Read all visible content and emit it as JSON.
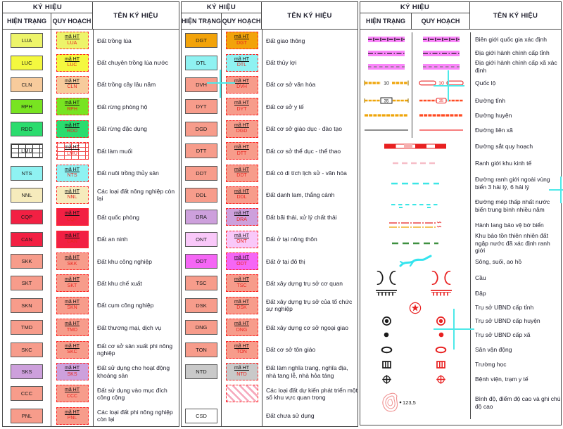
{
  "header": {
    "ky_hieu": "KÝ HIỆU",
    "hien_trang": "HIỆN TRẠNG",
    "quy_hoach": "QUY HOẠCH",
    "ten_ky_hieu": "TÊN KÝ HIỆU"
  },
  "ma_ht": "mã HT",
  "colors": {
    "band_pink": "#FA86FA",
    "border_line_black": "#1A1A1A",
    "border_line_gray": "#7A7A7A",
    "road_orange": "#EFA50A",
    "road_red_orange": "#FF4A22",
    "red": "#E82020",
    "orange_line": "#EFA000",
    "cyan_line": "#3CE6E6",
    "econ_pink": "#F6BEC8",
    "reserve_green": "#3E9040",
    "river_cyan": "#35E4EE",
    "black": "#1A1A1A",
    "contour_red": "#F09090",
    "cross_cyan": "#4DE9E9",
    "code_red": "#E8251F"
  },
  "group1": {
    "rows": [
      {
        "code": "LUA",
        "color": "#EDF46A",
        "ht": true,
        "qh": true,
        "name": "Đất trồng lúa"
      },
      {
        "code": "LUC",
        "color": "#F4F83F",
        "ht": true,
        "qh": true,
        "name": "Đất chuyên trồng lúa nước"
      },
      {
        "code": "CLN",
        "color": "#F7CB9C",
        "ht": true,
        "qh": true,
        "name": "Đất trồng cây lâu năm"
      },
      {
        "code": "RPH",
        "color": "#78E421",
        "ht": true,
        "qh": true,
        "name": "Đất rừng phòng hộ"
      },
      {
        "code": "RDD",
        "color": "#2BDC6E",
        "ht": true,
        "qh": true,
        "name": "Đất rừng đặc dụng"
      },
      {
        "code": "LMU",
        "color": "#FFFFFF",
        "pattern": "grid",
        "ht": true,
        "qh": true,
        "name": "Đất làm muối"
      },
      {
        "code": "NTS",
        "color": "#8FF2F2",
        "ht": true,
        "qh": true,
        "name": "Đất nuôi trồng thủy sản"
      },
      {
        "code": "NNL",
        "color": "#F6EBBC",
        "ht": true,
        "qh": true,
        "name": "Các loại đất nông nghiệp còn lại"
      },
      {
        "code": "CQP",
        "color": "#F22043",
        "ht": true,
        "qh": true,
        "name": "Đất quốc phòng"
      },
      {
        "code": "CAN",
        "color": "#F22043",
        "ht": true,
        "qh": true,
        "name": "Đất an ninh"
      },
      {
        "code": "SKK",
        "color": "#F79C8B",
        "ht": true,
        "qh": true,
        "name": "Đất khu công nghiệp"
      },
      {
        "code": "SKT",
        "color": "#F79C8B",
        "ht": true,
        "qh": true,
        "name": "Đất khu chế xuất"
      },
      {
        "code": "SKN",
        "color": "#F79C8B",
        "ht": true,
        "qh": true,
        "name": "Đất cụm công nghiệp"
      },
      {
        "code": "TMD",
        "color": "#F79C8B",
        "ht": true,
        "qh": true,
        "name": "Đất thương mại, dịch vụ"
      },
      {
        "code": "SKC",
        "color": "#F79C8B",
        "ht": true,
        "qh": true,
        "name": "Đất cơ sở sản xuất phi nông nghiệp"
      },
      {
        "code": "SKS",
        "color": "#CDA0DC",
        "ht": true,
        "qh": true,
        "name": "Đất sử dụng cho hoạt động khoáng sản"
      },
      {
        "code": "CCC",
        "color": "#F79C8B",
        "ht": true,
        "qh": true,
        "name": "Đất sử dụng vào mục đích công cộng"
      },
      {
        "code": "PNL",
        "color": "#F79C8B",
        "ht": true,
        "qh": true,
        "name": "Các loại đất phi nông nghiệp còn lại"
      }
    ]
  },
  "group2": {
    "rows": [
      {
        "code": "DGT",
        "color": "#F2A30A",
        "ht": true,
        "qh": true,
        "name": "Đất giao thông"
      },
      {
        "code": "DTL",
        "color": "#8FF2F2",
        "ht": true,
        "qh": true,
        "name": "Đất thủy lợi"
      },
      {
        "code": "DVH",
        "color": "#F79C8B",
        "ht": true,
        "qh": true,
        "name": "Đất cơ sở văn hóa"
      },
      {
        "code": "DYT",
        "color": "#F79C8B",
        "ht": true,
        "qh": true,
        "name": "Đất cơ sở y tế"
      },
      {
        "code": "DGD",
        "color": "#F79C8B",
        "ht": true,
        "qh": true,
        "name": "Đất cơ sở giáo dục - đào tạo"
      },
      {
        "code": "DTT",
        "color": "#F79C8B",
        "ht": true,
        "qh": true,
        "name": "Đất cơ sở thể dục - thể thao"
      },
      {
        "code": "DDT",
        "color": "#F79C8B",
        "ht": true,
        "qh": true,
        "name": "Đất có di tích lịch sử - văn hóa"
      },
      {
        "code": "DDL",
        "color": "#F79C8B",
        "ht": true,
        "qh": true,
        "name": "Đất danh lam, thắng cảnh"
      },
      {
        "code": "DRA",
        "color": "#CDA0DC",
        "ht": true,
        "qh": true,
        "name": "Đất bãi thải, xử lý chất thải"
      },
      {
        "code": "ONT",
        "color": "#F9C8F9",
        "ht": true,
        "qh": true,
        "name": "Đất ở tại nông thôn"
      },
      {
        "code": "ODT",
        "color": "#F566F5",
        "ht": true,
        "qh": true,
        "name": "Đất ở tại đô thị"
      },
      {
        "code": "TSC",
        "color": "#F79C8B",
        "ht": true,
        "qh": true,
        "name": "Đất xây dựng trụ sở cơ quan"
      },
      {
        "code": "DSK",
        "color": "#F79C8B",
        "ht": true,
        "qh": true,
        "name": "Đất xây dựng trụ sở của tổ chức sự nghiệp"
      },
      {
        "code": "DNG",
        "color": "#F79C8B",
        "ht": true,
        "qh": true,
        "name": "Đất xây dựng cơ sở ngoại giao"
      },
      {
        "code": "TON",
        "color": "#F79C8B",
        "ht": true,
        "qh": true,
        "name": "Đất cơ sở tôn giáo"
      },
      {
        "code": "NTD",
        "color": "#C9C9C9",
        "ht": true,
        "qh": true,
        "name": "Đất làm nghĩa trang, nghĩa địa, nhà tang lễ, nhà hỏa táng"
      },
      {
        "code": "",
        "color": "",
        "pattern": "hatch",
        "ht": false,
        "qh": true,
        "name": "Các loại đất dự kiến phát triển một số khu vực quan trọng"
      },
      {
        "code": "CSD",
        "color": "#FFFFFF",
        "ht": true,
        "qh": false,
        "name": "Đất chưa sử dụng"
      }
    ]
  },
  "group3": {
    "rows": [
      {
        "id": "national-border",
        "kind": "both",
        "h": 20,
        "sym_ht": "band_national",
        "sym_qh": "band_national",
        "name": "Biên giới quốc gia xác định"
      },
      {
        "id": "province-boundary",
        "kind": "both",
        "h": 19,
        "sym_ht": "band_province",
        "sym_qh": "band_province",
        "name": "Địa giới hành chính cấp tỉnh"
      },
      {
        "id": "commune-boundary",
        "kind": "both",
        "h": 19,
        "sym_ht": "band_commune",
        "sym_qh": "band_commune",
        "name": "Địa giới hành chính cấp xã xác định"
      },
      {
        "id": "national-road",
        "kind": "both",
        "h": 28,
        "sym_ht": "road_national_ht",
        "sym_qh": "road_national_qh",
        "label": "10",
        "name": "Quốc lộ"
      },
      {
        "id": "province-road",
        "kind": "both",
        "h": 22,
        "sym_ht": "road_province_ht",
        "sym_qh": "road_province_qh",
        "label": "35",
        "name": "Đường tỉnh"
      },
      {
        "id": "district-road",
        "kind": "both",
        "h": 20,
        "sym_ht": "road_district_ht",
        "sym_qh": "road_district_qh",
        "name": "Đường huyện"
      },
      {
        "id": "commune-road",
        "kind": "both",
        "h": 22,
        "sym_ht": "road_commune_ht",
        "sym_qh": "road_commune_qh",
        "name": "Đường liên xã"
      },
      {
        "id": "planned-railway",
        "kind": "span",
        "h": 24,
        "sym": "railway",
        "name": "Đường sắt quy hoạch"
      },
      {
        "id": "economic-zone-boundary",
        "kind": "span",
        "h": 24,
        "sym": "econ_zone",
        "name": "Ranh giới khu kinh tế"
      },
      {
        "id": "sea-outer-boundary",
        "kind": "span",
        "h": 34,
        "sym": "sea_outer",
        "name": "Đường ranh giới ngoài vùng biển 3 hải lý, 6 hải lý"
      },
      {
        "id": "sea-lowest-waterline",
        "kind": "span",
        "h": 30,
        "sym": "sea_low",
        "name": "Đường mép thấp nhất nước biển trung bình nhiều năm"
      },
      {
        "id": "coast-protection-corridor",
        "kind": "span",
        "h": 24,
        "sym": "coast",
        "name": "Hành lang bảo vệ bờ biển"
      },
      {
        "id": "wetland-reserve-boundary",
        "kind": "span",
        "h": 28,
        "sym": "reserve",
        "name": "Khu bảo tồn thiên nhiên đất ngập nước đã xác định ranh giới"
      },
      {
        "id": "river-stream",
        "kind": "span",
        "h": 24,
        "sym": "river",
        "name": "Sông, suối, ao hồ"
      },
      {
        "id": "bridge",
        "kind": "pair",
        "h": 22,
        "pair": "bridge",
        "name": "Cầu"
      },
      {
        "id": "dam",
        "kind": "pair",
        "h": 22,
        "pair": "dam",
        "name": "Đập"
      },
      {
        "id": "ubnd-province-office",
        "kind": "center",
        "h": 19,
        "sym": "star_circle",
        "name": "Trụ sở UBND cấp tỉnh"
      },
      {
        "id": "ubnd-district-office",
        "kind": "pair",
        "h": 19,
        "pair": "ring_dot",
        "name": "Trụ sở UBND cấp huyện"
      },
      {
        "id": "ubnd-commune-office",
        "kind": "pair",
        "h": 20,
        "pair": "dot",
        "name": "Trụ sở UBND cấp xã"
      },
      {
        "id": "stadium",
        "kind": "pair",
        "h": 22,
        "pair": "stadium",
        "name": "Sân vận động"
      },
      {
        "id": "school",
        "kind": "pair",
        "h": 20,
        "pair": "school",
        "name": "Trường học"
      },
      {
        "id": "hospital",
        "kind": "pair",
        "h": 22,
        "pair": "hospital",
        "name": "Bệnh viện, trạm y tế"
      },
      {
        "id": "elevation-contour",
        "kind": "contour",
        "h": 46,
        "sym": "contour",
        "label": "123,5",
        "name": "Bình độ, điểm độ cao và ghi chú độ cao"
      }
    ]
  }
}
